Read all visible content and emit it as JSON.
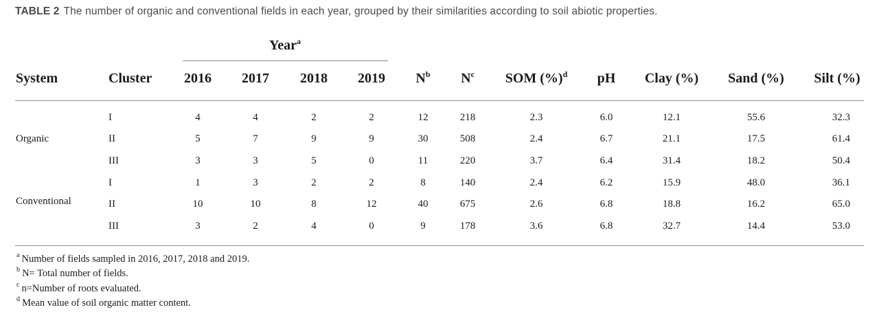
{
  "caption": {
    "label": "TABLE 2",
    "text": "The number of organic and conventional fields in each year, grouped by their similarities according to soil abiotic properties."
  },
  "table": {
    "year_group": {
      "label": "Year",
      "sup": "a"
    },
    "headers": {
      "system": "System",
      "cluster": "Cluster",
      "y2016": "2016",
      "y2017": "2017",
      "y2018": "2018",
      "y2019": "2019",
      "N": "N",
      "N_sup": "b",
      "n": "N",
      "n_sup": "c",
      "som": "SOM (%)",
      "som_sup": "d",
      "ph": "pH",
      "clay": "Clay (%)",
      "sand": "Sand (%)",
      "silt": "Silt (%)"
    },
    "groups": [
      {
        "system": "Organic",
        "rows": [
          {
            "cluster": "I",
            "y2016": "4",
            "y2017": "4",
            "y2018": "2",
            "y2019": "2",
            "N": "12",
            "n": "218",
            "som": "2.3",
            "ph": "6.0",
            "clay": "12.1",
            "sand": "55.6",
            "silt": "32.3"
          },
          {
            "cluster": "II",
            "y2016": "5",
            "y2017": "7",
            "y2018": "9",
            "y2019": "9",
            "N": "30",
            "n": "508",
            "som": "2.4",
            "ph": "6.7",
            "clay": "21.1",
            "sand": "17.5",
            "silt": "61.4"
          },
          {
            "cluster": "III",
            "y2016": "3",
            "y2017": "3",
            "y2018": "5",
            "y2019": "0",
            "N": "11",
            "n": "220",
            "som": "3.7",
            "ph": "6.4",
            "clay": "31.4",
            "sand": "18.2",
            "silt": "50.4"
          }
        ]
      },
      {
        "system": "Conventional",
        "rows": [
          {
            "cluster": "I",
            "y2016": "1",
            "y2017": "3",
            "y2018": "2",
            "y2019": "2",
            "N": "8",
            "n": "140",
            "som": "2.4",
            "ph": "6.2",
            "clay": "15.9",
            "sand": "48.0",
            "silt": "36.1"
          },
          {
            "cluster": "II",
            "y2016": "10",
            "y2017": "10",
            "y2018": "8",
            "y2019": "12",
            "N": "40",
            "n": "675",
            "som": "2.6",
            "ph": "6.8",
            "clay": "18.8",
            "sand": "16.2",
            "silt": "65.0"
          },
          {
            "cluster": "III",
            "y2016": "3",
            "y2017": "2",
            "y2018": "4",
            "y2019": "0",
            "N": "9",
            "n": "178",
            "som": "3.6",
            "ph": "6.8",
            "clay": "32.7",
            "sand": "14.4",
            "silt": "53.0"
          }
        ]
      }
    ]
  },
  "footnotes": [
    {
      "mark": "a",
      "text": "Number of fields sampled in 2016, 2017, 2018 and 2019."
    },
    {
      "mark": "b",
      "text": "N= Total number of fields."
    },
    {
      "mark": "c",
      "text": "n=Number of roots evaluated."
    },
    {
      "mark": "d",
      "text": "Mean value of soil organic matter content."
    }
  ]
}
